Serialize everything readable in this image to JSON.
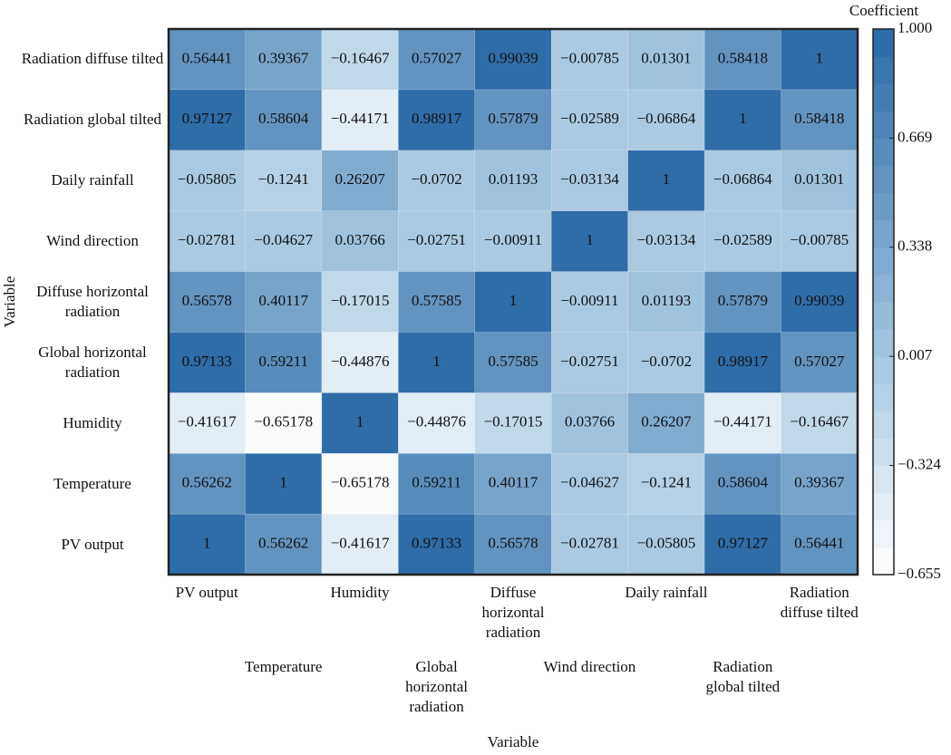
{
  "chart_data": {
    "type": "heatmap",
    "x_label": "Variable",
    "y_label": "Variable",
    "colorbar_title": "Coefficient",
    "categories": [
      "PV output",
      "Temperature",
      "Humidity",
      "Global horizontal radiation",
      "Diffuse horizontal radiation",
      "Wind direction",
      "Daily rainfall",
      "Radiation global tilted",
      "Radiation diffuse tilted"
    ],
    "z": [
      [
        1,
        0.56262,
        -0.41617,
        0.97133,
        0.56578,
        -0.02781,
        -0.05805,
        0.97127,
        0.56441
      ],
      [
        0.56262,
        1,
        -0.65178,
        0.59211,
        0.40117,
        -0.04627,
        -0.1241,
        0.58604,
        0.39367
      ],
      [
        -0.41617,
        -0.65178,
        1,
        -0.44876,
        -0.17015,
        0.03766,
        0.26207,
        -0.44171,
        -0.16467
      ],
      [
        0.97133,
        0.59211,
        -0.44876,
        1,
        0.57585,
        -0.02751,
        -0.0702,
        0.98917,
        0.57027
      ],
      [
        0.56578,
        0.40117,
        -0.17015,
        0.57585,
        1,
        -0.00911,
        0.01193,
        0.57879,
        0.99039
      ],
      [
        -0.02781,
        -0.04627,
        0.03766,
        -0.02751,
        -0.00911,
        1,
        -0.03134,
        -0.02589,
        -0.00785
      ],
      [
        -0.05805,
        -0.1241,
        0.26207,
        -0.0702,
        0.01193,
        -0.03134,
        1,
        -0.06864,
        0.01301
      ],
      [
        0.97127,
        0.58604,
        -0.44171,
        0.98917,
        0.57879,
        -0.02589,
        -0.06864,
        1,
        0.58418
      ],
      [
        0.56441,
        0.39367,
        -0.16467,
        0.57027,
        0.99039,
        -0.00785,
        0.01301,
        0.58418,
        1
      ]
    ],
    "value_labels": [
      [
        "1",
        "0.56262",
        "−0.41617",
        "0.97133",
        "0.56578",
        "−0.02781",
        "−0.05805",
        "0.97127",
        "0.56441"
      ],
      [
        "0.56262",
        "1",
        "−0.65178",
        "0.59211",
        "0.40117",
        "−0.04627",
        "−0.1241",
        "0.58604",
        "0.39367"
      ],
      [
        "−0.41617",
        "−0.65178",
        "1",
        "−0.44876",
        "−0.17015",
        "0.03766",
        "0.26207",
        "−0.44171",
        "−0.16467"
      ],
      [
        "0.97133",
        "0.59211",
        "−0.44876",
        "1",
        "0.57585",
        "−0.02751",
        "−0.0702",
        "0.98917",
        "0.57027"
      ],
      [
        "0.56578",
        "0.40117",
        "−0.17015",
        "0.57585",
        "1",
        "−0.00911",
        "0.01193",
        "0.57879",
        "0.99039"
      ],
      [
        "−0.02781",
        "−0.04627",
        "0.03766",
        "−0.02751",
        "−0.00911",
        "1",
        "−0.03134",
        "−0.02589",
        "−0.00785"
      ],
      [
        "−0.05805",
        "−0.1241",
        "0.26207",
        "−0.0702",
        "0.01193",
        "−0.03134",
        "1",
        "−0.06864",
        "0.01301"
      ],
      [
        "0.97127",
        "0.58604",
        "−0.44171",
        "0.98917",
        "0.57879",
        "−0.02589",
        "−0.06864",
        "1",
        "0.58418"
      ],
      [
        "0.56441",
        "0.39367",
        "−0.16467",
        "0.57027",
        "0.99039",
        "−0.00785",
        "0.01301",
        "0.58418",
        "1"
      ]
    ],
    "zlim": [
      -0.655,
      1
    ],
    "zticks": [
      {
        "value": 1,
        "label": "1.000"
      },
      {
        "value": 0.669,
        "label": "0.669"
      },
      {
        "value": 0.338,
        "label": "0.338"
      },
      {
        "value": 0.007,
        "label": "0.007"
      },
      {
        "value": -0.324,
        "label": "−0.324"
      },
      {
        "value": -0.655,
        "label": "−0.655"
      }
    ],
    "colormap": [
      "#ffffff",
      "#8fb8d7",
      "#2a69a7"
    ],
    "levels": 20
  }
}
